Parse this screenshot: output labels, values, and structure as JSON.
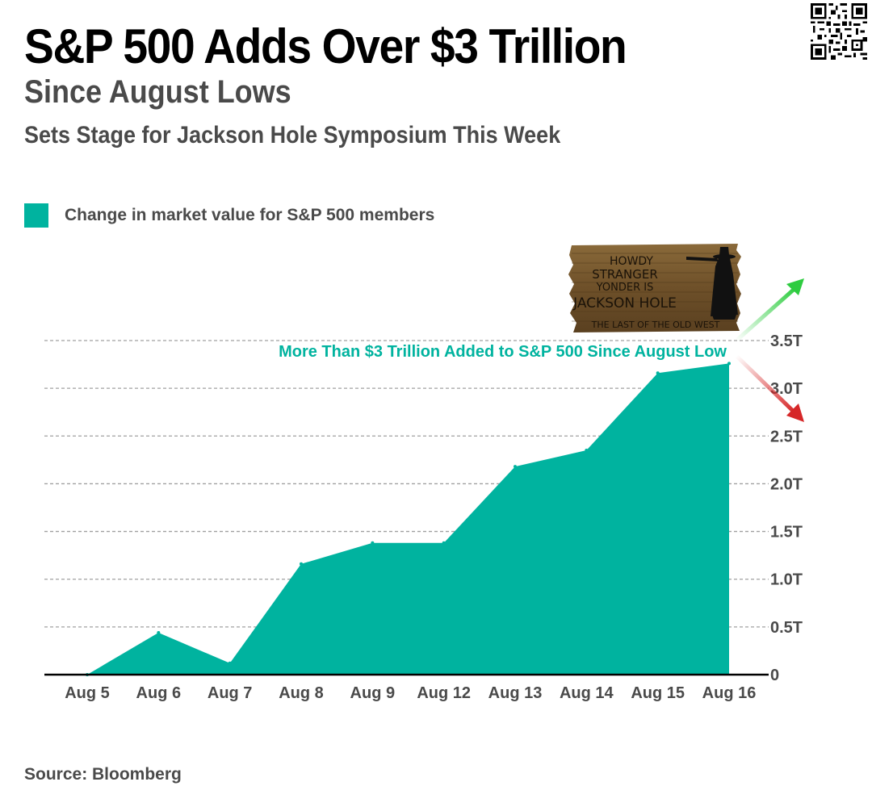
{
  "header": {
    "title": "S&P 500 Adds Over $3 Trillion",
    "subtitle": "Since August Lows",
    "subheading": "Sets Stage for Jackson Hole Symposium This Week"
  },
  "qr_code": {
    "icon": "qr-code-icon"
  },
  "sign": {
    "lines": [
      "HOWDY",
      "STRANGER",
      "YONDER IS",
      "JACKSON HOLE",
      "THE LAST OF THE OLD WEST"
    ]
  },
  "arrows": {
    "up_color": "#2ecc40",
    "down_color": "#d62728"
  },
  "footer": {
    "source": "Source: Bloomberg"
  },
  "colors": {
    "accent": "#00b39f",
    "text": "#4a4a4a",
    "grid": "#a0a0a0"
  },
  "chart_data": {
    "type": "area",
    "title": "S&P 500 Adds Over $3 Trillion",
    "legend": {
      "position": "top-left",
      "entries": [
        "Change in market value for S&P 500 members"
      ]
    },
    "categories": [
      "Aug 5",
      "Aug 6",
      "Aug 7",
      "Aug 8",
      "Aug 9",
      "Aug 12",
      "Aug 13",
      "Aug 14",
      "Aug 15",
      "Aug 16"
    ],
    "series": [
      {
        "name": "Change in market value for S&P 500 members",
        "unit": "trillion USD",
        "values": [
          0,
          0.44,
          0.12,
          1.16,
          1.38,
          1.38,
          2.18,
          2.35,
          3.16,
          3.26
        ]
      }
    ],
    "y_ticks": [
      0,
      0.5,
      1.0,
      1.5,
      2.0,
      2.5,
      3.0,
      3.5
    ],
    "y_tick_labels": [
      "0",
      "0.5T",
      "1.0T",
      "1.5T",
      "2.0T",
      "2.5T",
      "3.0T",
      "3.5T"
    ],
    "ylim": [
      0,
      3.5
    ],
    "y_axis_side": "right",
    "grid": true,
    "annotation": "More Than $3 Trillion Added to S&P 500 Since August Low",
    "xlabel": "",
    "ylabel": ""
  }
}
